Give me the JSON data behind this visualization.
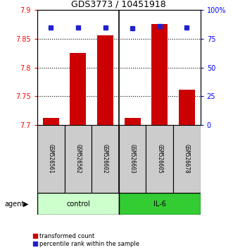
{
  "title": "GDS3773 / 10451918",
  "samples": [
    "GSM526561",
    "GSM526562",
    "GSM526602",
    "GSM526603",
    "GSM526605",
    "GSM526678"
  ],
  "bar_values": [
    7.712,
    7.825,
    7.856,
    7.712,
    7.876,
    7.762
  ],
  "percentile_values": [
    85,
    85,
    85,
    84,
    86,
    85
  ],
  "ylim_left": [
    7.7,
    7.9
  ],
  "ylim_right": [
    0,
    100
  ],
  "yticks_left": [
    7.7,
    7.75,
    7.8,
    7.85,
    7.9
  ],
  "ytick_labels_left": [
    "7.7",
    "7.75",
    "7.8",
    "7.85",
    "7.9"
  ],
  "yticks_right": [
    0,
    25,
    50,
    75,
    100
  ],
  "ytick_labels_right": [
    "0",
    "25",
    "50",
    "75",
    "100%"
  ],
  "groups": [
    {
      "label": "control",
      "indices": [
        0,
        1,
        2
      ],
      "color": "#ccffcc"
    },
    {
      "label": "IL-6",
      "indices": [
        3,
        4,
        5
      ],
      "color": "#33cc33"
    }
  ],
  "bar_color": "#cc0000",
  "square_color": "#2222cc",
  "bar_bottom": 7.7,
  "legend_items": [
    {
      "label": "transformed count",
      "color": "#cc0000"
    },
    {
      "label": "percentile rank within the sample",
      "color": "#2222cc"
    }
  ],
  "grid_yticks": [
    7.75,
    7.8,
    7.85
  ],
  "sample_box_color": "#cccccc",
  "agent_label": "agent"
}
